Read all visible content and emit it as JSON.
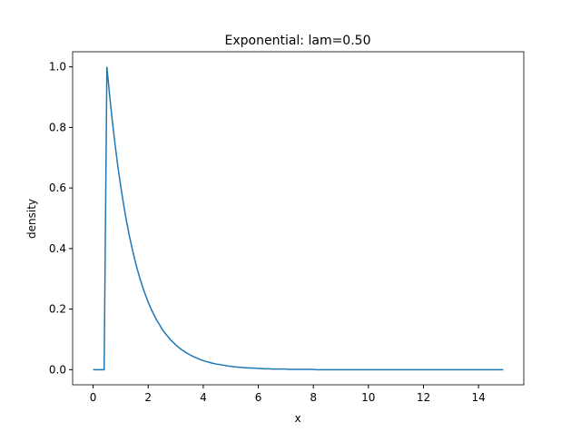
{
  "chart_data": {
    "type": "line",
    "title": "Exponential: lam=0.50",
    "xlabel": "x",
    "ylabel": "density",
    "x": [
      0,
      0.1,
      0.2,
      0.3,
      0.4,
      0.5,
      0.6,
      0.7,
      0.8,
      0.9,
      1,
      1.1,
      1.2,
      1.3,
      1.4,
      1.5,
      1.6,
      1.7,
      1.8,
      1.9,
      2,
      2.1,
      2.2,
      2.3,
      2.4,
      2.5,
      2.6,
      2.7,
      2.8,
      2.9,
      3,
      3.1,
      3.2,
      3.3,
      3.4,
      3.5,
      3.6,
      3.7,
      3.8,
      3.9,
      4,
      4.1,
      4.2,
      4.3,
      4.4,
      4.5,
      4.6,
      4.7,
      4.8,
      4.9,
      5,
      5.1,
      5.2,
      5.3,
      5.4,
      5.5,
      5.6,
      5.7,
      5.8,
      5.9,
      6,
      6.1,
      6.2,
      6.3,
      6.4,
      6.5,
      6.6,
      6.7,
      6.8,
      6.9,
      7,
      7.1,
      7.2,
      7.3,
      7.4,
      7.5,
      7.6,
      7.7,
      7.8,
      7.9,
      8,
      8.1,
      8.2,
      8.3,
      8.4,
      8.5,
      8.6,
      8.7,
      8.8,
      8.9,
      9,
      9.1,
      9.2,
      9.3,
      9.4,
      9.5,
      9.6,
      9.7,
      9.8,
      9.9,
      10,
      10.1,
      10.2,
      10.3,
      10.4,
      10.5,
      10.6,
      10.7,
      10.8,
      10.9,
      11,
      11.1,
      11.2,
      11.3,
      11.4,
      11.5,
      11.6,
      11.7,
      11.8,
      11.9,
      12,
      12.1,
      12.2,
      12.3,
      12.4,
      12.5,
      12.6,
      12.7,
      12.8,
      12.9,
      13,
      13.1,
      13.2,
      13.3,
      13.4,
      13.5,
      13.6,
      13.7,
      13.8,
      13.9,
      14,
      14.1,
      14.2,
      14.3,
      14.4,
      14.5,
      14.6,
      14.7,
      14.8,
      14.9
    ],
    "series": [
      {
        "color": "#1f77b4",
        "values": [
          0,
          0,
          0,
          0,
          0,
          1,
          0.905,
          0.819,
          0.741,
          0.67,
          0.607,
          0.549,
          0.497,
          0.449,
          0.407,
          0.368,
          0.333,
          0.301,
          0.273,
          0.247,
          0.223,
          0.202,
          0.183,
          0.165,
          0.15,
          0.135,
          0.122,
          0.111,
          0.1,
          0.091,
          0.082,
          0.074,
          0.067,
          0.061,
          0.055,
          0.05,
          0.045,
          0.041,
          0.037,
          0.033,
          0.03,
          0.027,
          0.025,
          0.022,
          0.02,
          0.018,
          0.017,
          0.015,
          0.014,
          0.012,
          0.011,
          0.01,
          0.009,
          0.008,
          0.007,
          0.007,
          0.006,
          0.006,
          0.005,
          0.005,
          0.004,
          0.004,
          0.003,
          0.003,
          0.003,
          0.002,
          0.002,
          0.002,
          0.002,
          0.002,
          0.002,
          0.001,
          0.001,
          0.001,
          0.001,
          0.001,
          0.001,
          0.001,
          0.001,
          0.001,
          0.001,
          0,
          0,
          0,
          0,
          0,
          0,
          0,
          0,
          0,
          0,
          0,
          0,
          0,
          0,
          0,
          0,
          0,
          0,
          0,
          0,
          0,
          0,
          0,
          0,
          0,
          0,
          0,
          0,
          0,
          0,
          0,
          0,
          0,
          0,
          0,
          0,
          0,
          0,
          0,
          0,
          0,
          0,
          0,
          0,
          0,
          0,
          0,
          0,
          0,
          0,
          0,
          0,
          0,
          0,
          0,
          0,
          0,
          0,
          0,
          0,
          0,
          0,
          0,
          0,
          0,
          0,
          0,
          0,
          0
        ]
      }
    ],
    "xlim": [
      -0.745,
      15.645
    ],
    "ylim": [
      -0.05,
      1.05
    ],
    "xticks": [
      0,
      2,
      4,
      6,
      8,
      10,
      12,
      14
    ],
    "yticks": [
      {
        "value": 0,
        "label": "0.0"
      },
      {
        "value": 0.2,
        "label": "0.2"
      },
      {
        "value": 0.4,
        "label": "0.4"
      },
      {
        "value": 0.6,
        "label": "0.6"
      },
      {
        "value": 0.8,
        "label": "0.8"
      },
      {
        "value": 1,
        "label": "1.0"
      }
    ],
    "grid": false
  }
}
